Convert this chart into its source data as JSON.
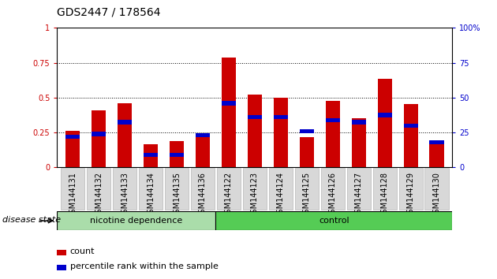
{
  "title": "GDS2447 / 178564",
  "samples": [
    "GSM144131",
    "GSM144132",
    "GSM144133",
    "GSM144134",
    "GSM144135",
    "GSM144136",
    "GSM144122",
    "GSM144123",
    "GSM144124",
    "GSM144125",
    "GSM144126",
    "GSM144127",
    "GSM144128",
    "GSM144129",
    "GSM144130"
  ],
  "count_values": [
    0.26,
    0.41,
    0.46,
    0.165,
    0.19,
    0.245,
    0.79,
    0.52,
    0.5,
    0.215,
    0.475,
    0.355,
    0.635,
    0.455,
    0.195
  ],
  "percentile_values": [
    0.235,
    0.255,
    0.34,
    0.105,
    0.105,
    0.245,
    0.475,
    0.375,
    0.375,
    0.275,
    0.355,
    0.34,
    0.39,
    0.315,
    0.195
  ],
  "group1_label": "nicotine dependence",
  "group2_label": "control",
  "group1_count": 6,
  "group2_count": 9,
  "group1_color": "#aaddaa",
  "group2_color": "#55cc55",
  "bar_color_count": "#cc0000",
  "bar_color_pct": "#0000cc",
  "bg_color": "#d8d8d8",
  "ylim": [
    0,
    1.0
  ],
  "yticks": [
    0,
    0.25,
    0.5,
    0.75,
    1.0
  ],
  "ytick_labels_left": [
    "0",
    "0.25",
    "0.5",
    "0.75",
    "1"
  ],
  "ytick_labels_right": [
    "0",
    "25",
    "50",
    "75",
    "100%"
  ],
  "disease_state_label": "disease state",
  "legend_count_label": "count",
  "legend_pct_label": "percentile rank within the sample",
  "bar_width": 0.55,
  "title_fontsize": 10,
  "tick_fontsize": 7,
  "label_fontsize": 8,
  "pct_bar_thickness": 0.03
}
